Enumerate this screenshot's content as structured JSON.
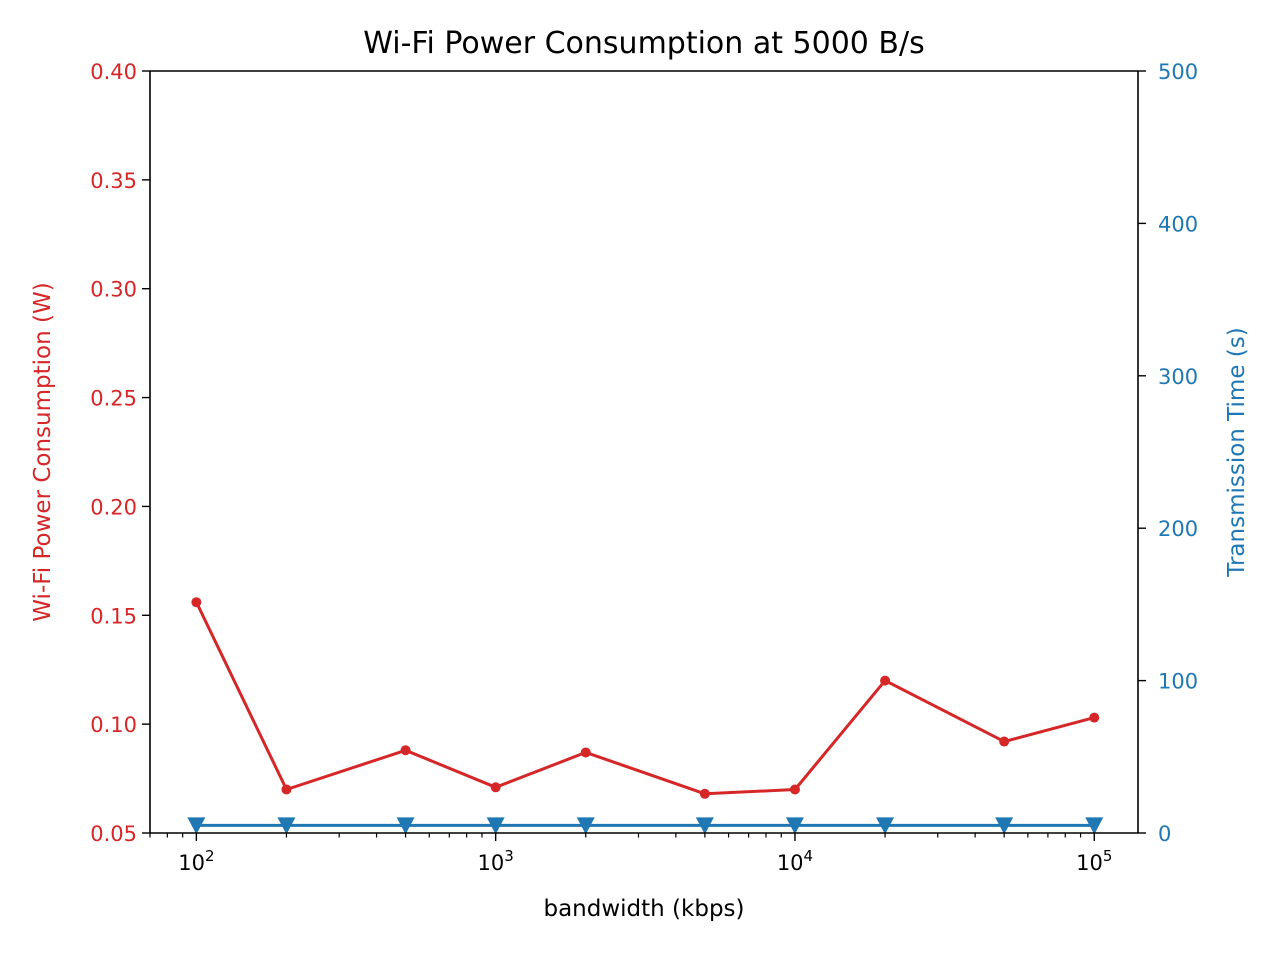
{
  "chart_data": {
    "type": "line",
    "title": "Wi-Fi Power Consumption at 5000 B/s",
    "xlabel": "bandwidth (kbps)",
    "xscale": "log",
    "xlim": [
      70,
      140000
    ],
    "x": [
      100,
      200,
      500,
      1000,
      2000,
      5000,
      10000,
      20000,
      50000,
      100000
    ],
    "x_major_ticks": [
      {
        "value": 100,
        "base": "10",
        "exp": "2"
      },
      {
        "value": 1000,
        "base": "10",
        "exp": "3"
      },
      {
        "value": 10000,
        "base": "10",
        "exp": "4"
      },
      {
        "value": 100000,
        "base": "10",
        "exp": "5"
      }
    ],
    "y_left": {
      "label": "Wi-Fi Power Consumption (W)",
      "color": "#d62728",
      "ylim": [
        0.05,
        0.4
      ],
      "ticks": [
        "0.05",
        "0.10",
        "0.15",
        "0.20",
        "0.25",
        "0.30",
        "0.35",
        "0.40"
      ]
    },
    "y_right": {
      "label": "Transmission Time (s)",
      "color": "#1f77b4",
      "ylim": [
        0,
        500
      ],
      "ticks": [
        "0",
        "100",
        "200",
        "300",
        "400",
        "500"
      ]
    },
    "series": [
      {
        "axis": "left",
        "color": "#d62728",
        "marker": "circle",
        "values": [
          0.156,
          0.07,
          0.088,
          0.071,
          0.087,
          0.068,
          0.07,
          0.12,
          0.092,
          0.103
        ]
      },
      {
        "axis": "right",
        "color": "#1f77b4",
        "marker": "triangle-down",
        "values": [
          5,
          5,
          5,
          5,
          5,
          5,
          5,
          5,
          5,
          5
        ]
      }
    ],
    "grid": false,
    "legend": "none"
  }
}
